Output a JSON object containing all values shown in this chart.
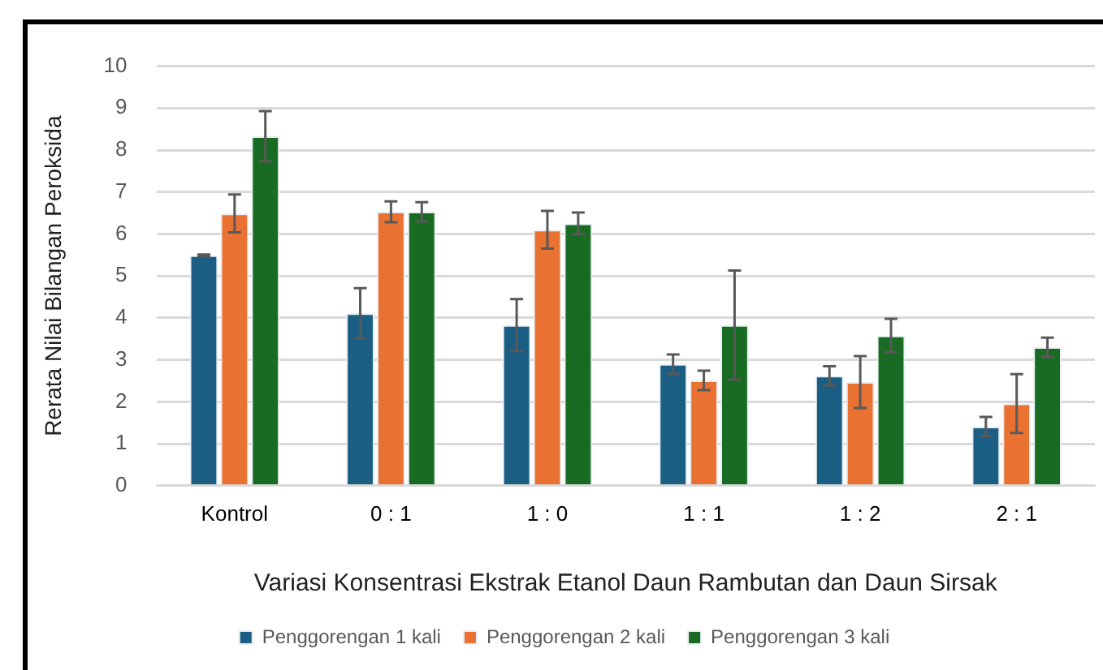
{
  "chart_data": {
    "type": "bar",
    "xlabel": "Variasi Konsentrasi Ekstrak Etanol Daun Rambutan dan Daun Sirsak",
    "ylabel": "Rerata Nilai Bilangan Peroksida",
    "categories": [
      "Kontrol",
      "0 : 1",
      "1 : 0",
      "1 : 1",
      "1 : 2",
      "2 : 1"
    ],
    "series": [
      {
        "name": "Penggorengan 1 kali",
        "color": "#1a5e83",
        "values": [
          5.49,
          4.11,
          3.83,
          2.9,
          2.62,
          1.41
        ],
        "errors": [
          0.02,
          0.6,
          0.62,
          0.23,
          0.23,
          0.23
        ]
      },
      {
        "name": "Penggorengan 2 kali",
        "color": "#e97132",
        "values": [
          6.49,
          6.53,
          6.1,
          2.51,
          2.47,
          1.96
        ],
        "errors": [
          0.45,
          0.25,
          0.45,
          0.23,
          0.62,
          0.7
        ]
      },
      {
        "name": "Penggorengan 3 kali",
        "color": "#196b24",
        "values": [
          8.33,
          6.53,
          6.25,
          3.83,
          3.58,
          3.3
        ],
        "errors": [
          0.6,
          0.23,
          0.26,
          1.3,
          0.4,
          0.23
        ]
      }
    ],
    "ylim": [
      0,
      10
    ],
    "yticks": [
      0,
      1,
      2,
      3,
      4,
      5,
      6,
      7,
      8,
      9,
      10
    ],
    "grid": "y",
    "legend": "bottom"
  }
}
